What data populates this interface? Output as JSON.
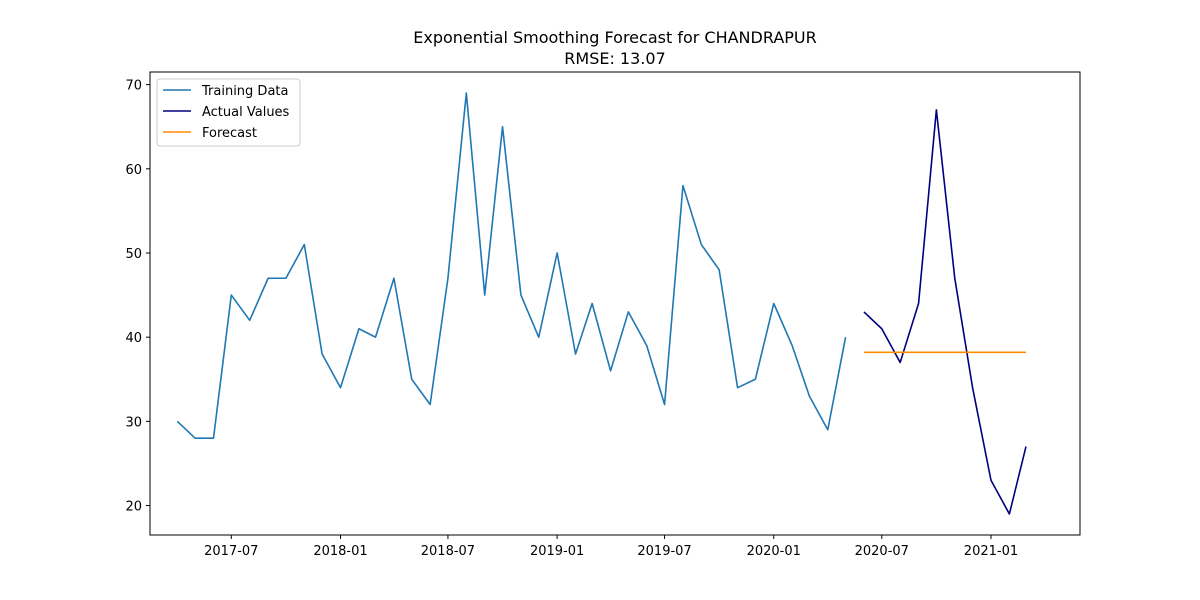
{
  "chart_data": {
    "type": "line",
    "title": "Exponential Smoothing Forecast for CHANDRAPUR",
    "subtitle": "RMSE: 13.07",
    "xlabel": "",
    "ylabel": "",
    "xlim": [
      "2017-02-14",
      "2021-05-31"
    ],
    "ylim": [
      16.5,
      71.5
    ],
    "x_ticks": [
      {
        "date": "2017-07-01",
        "label": "2017-07"
      },
      {
        "date": "2018-01-01",
        "label": "2018-01"
      },
      {
        "date": "2018-07-01",
        "label": "2018-07"
      },
      {
        "date": "2019-01-01",
        "label": "2019-01"
      },
      {
        "date": "2019-07-01",
        "label": "2019-07"
      },
      {
        "date": "2020-01-01",
        "label": "2020-01"
      },
      {
        "date": "2020-07-01",
        "label": "2020-07"
      },
      {
        "date": "2021-01-01",
        "label": "2021-01"
      }
    ],
    "y_ticks": [
      20,
      30,
      40,
      50,
      60,
      70
    ],
    "grid": false,
    "legend_position": "top-left",
    "series": [
      {
        "name": "Training Data",
        "color": "#1f77b4",
        "x": [
          "2017-04-01",
          "2017-05-01",
          "2017-06-01",
          "2017-07-01",
          "2017-08-01",
          "2017-09-01",
          "2017-10-01",
          "2017-11-01",
          "2017-12-01",
          "2018-01-01",
          "2018-02-01",
          "2018-03-01",
          "2018-04-01",
          "2018-05-01",
          "2018-06-01",
          "2018-07-01",
          "2018-08-01",
          "2018-09-01",
          "2018-10-01",
          "2018-11-01",
          "2018-12-01",
          "2019-01-01",
          "2019-02-01",
          "2019-03-01",
          "2019-04-01",
          "2019-05-01",
          "2019-06-01",
          "2019-07-01",
          "2019-08-01",
          "2019-09-01",
          "2019-10-01",
          "2019-11-01",
          "2019-12-01",
          "2020-01-01",
          "2020-02-01",
          "2020-03-01",
          "2020-04-01",
          "2020-05-01"
        ],
        "values": [
          30,
          28,
          28,
          45,
          42,
          47,
          47,
          51,
          38,
          34,
          41,
          40,
          47,
          35,
          32,
          47,
          69,
          45,
          65,
          45,
          40,
          50,
          38,
          44,
          36,
          43,
          39,
          32,
          58,
          51,
          48,
          34,
          35,
          44,
          39,
          33,
          29,
          40
        ]
      },
      {
        "name": "Actual Values",
        "color": "#000080",
        "x": [
          "2020-06-01",
          "2020-07-01",
          "2020-08-01",
          "2020-09-01",
          "2020-10-01",
          "2020-11-01",
          "2020-12-01",
          "2021-01-01",
          "2021-02-01",
          "2021-03-01"
        ],
        "values": [
          43,
          41,
          37,
          44,
          67,
          47,
          34,
          23,
          19,
          27
        ]
      },
      {
        "name": "Forecast",
        "color": "#ff8c00",
        "x": [
          "2020-06-01",
          "2020-07-01",
          "2020-08-01",
          "2020-09-01",
          "2020-10-01",
          "2020-11-01",
          "2020-12-01",
          "2021-01-01",
          "2021-02-01",
          "2021-03-01"
        ],
        "values": [
          38.2,
          38.2,
          38.2,
          38.2,
          38.2,
          38.2,
          38.2,
          38.2,
          38.2,
          38.2
        ]
      }
    ]
  }
}
